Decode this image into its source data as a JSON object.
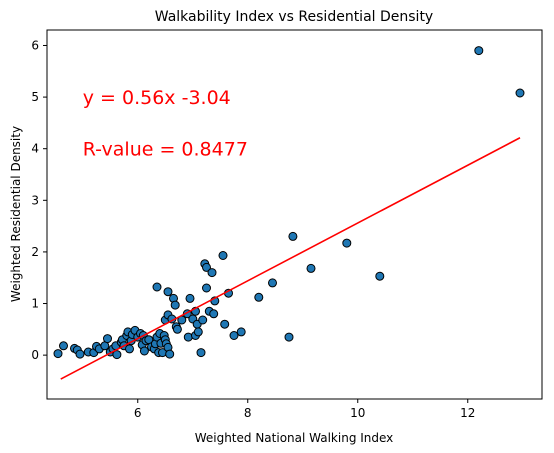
{
  "chart_data": {
    "type": "scatter",
    "title": "Walkability Index vs Residential Density",
    "xlabel": "Weighted National Walking Index",
    "ylabel": "Weighted Residential Density",
    "xlim": [
      4.35,
      13.35
    ],
    "ylim": [
      -0.85,
      6.3
    ],
    "x_ticks": [
      6,
      8,
      10,
      12
    ],
    "y_ticks": [
      0,
      1,
      2,
      3,
      4,
      5,
      6
    ],
    "grid": false,
    "colors": {
      "points": "#1f77b4",
      "edge": "#000000",
      "line": "#ff0000",
      "annotation": "#ff0000"
    },
    "annotations": [
      {
        "text": "y = 0.56x -3.04",
        "x": 5.0,
        "y": 5.0
      },
      {
        "text": "R-value = 0.8477",
        "x": 5.0,
        "y": 4.0
      }
    ],
    "regression": {
      "slope": 0.56,
      "intercept": -3.04,
      "x_range": [
        4.6,
        12.95
      ]
    },
    "points": [
      [
        4.55,
        0.03
      ],
      [
        4.65,
        0.18
      ],
      [
        4.85,
        0.13
      ],
      [
        4.9,
        0.1
      ],
      [
        4.95,
        0.02
      ],
      [
        5.1,
        0.06
      ],
      [
        5.2,
        0.05
      ],
      [
        5.25,
        0.17
      ],
      [
        5.3,
        0.12
      ],
      [
        5.4,
        0.18
      ],
      [
        5.45,
        0.32
      ],
      [
        5.5,
        0.06
      ],
      [
        5.55,
        0.12
      ],
      [
        5.6,
        0.18
      ],
      [
        5.62,
        0.01
      ],
      [
        5.7,
        0.25
      ],
      [
        5.72,
        0.3
      ],
      [
        5.75,
        0.18
      ],
      [
        5.8,
        0.38
      ],
      [
        5.82,
        0.45
      ],
      [
        5.85,
        0.12
      ],
      [
        5.88,
        0.28
      ],
      [
        5.9,
        0.4
      ],
      [
        5.95,
        0.48
      ],
      [
        6.0,
        0.35
      ],
      [
        6.05,
        0.42
      ],
      [
        6.08,
        0.2
      ],
      [
        6.1,
        0.38
      ],
      [
        6.12,
        0.08
      ],
      [
        6.15,
        0.28
      ],
      [
        6.2,
        0.3
      ],
      [
        6.25,
        0.16
      ],
      [
        6.3,
        0.12
      ],
      [
        6.32,
        0.22
      ],
      [
        6.35,
        0.35
      ],
      [
        6.38,
        0.05
      ],
      [
        6.4,
        0.42
      ],
      [
        6.42,
        0.23
      ],
      [
        6.45,
        0.05
      ],
      [
        6.48,
        0.38
      ],
      [
        6.5,
        0.3
      ],
      [
        6.52,
        0.22
      ],
      [
        6.55,
        0.15
      ],
      [
        6.58,
        0.02
      ],
      [
        6.35,
        1.32
      ],
      [
        6.55,
        1.23
      ],
      [
        6.5,
        0.68
      ],
      [
        6.55,
        0.78
      ],
      [
        6.62,
        0.7
      ],
      [
        6.65,
        1.1
      ],
      [
        6.68,
        0.97
      ],
      [
        6.7,
        0.55
      ],
      [
        6.72,
        0.5
      ],
      [
        6.8,
        0.68
      ],
      [
        6.9,
        0.8
      ],
      [
        6.92,
        0.35
      ],
      [
        6.95,
        1.1
      ],
      [
        7.0,
        0.7
      ],
      [
        7.05,
        0.85
      ],
      [
        7.05,
        0.38
      ],
      [
        7.08,
        0.6
      ],
      [
        7.1,
        0.45
      ],
      [
        7.15,
        0.05
      ],
      [
        7.18,
        0.68
      ],
      [
        7.22,
        1.77
      ],
      [
        7.25,
        1.7
      ],
      [
        7.25,
        1.3
      ],
      [
        7.3,
        0.85
      ],
      [
        7.35,
        1.6
      ],
      [
        7.38,
        0.8
      ],
      [
        7.4,
        1.05
      ],
      [
        7.55,
        1.93
      ],
      [
        7.58,
        0.6
      ],
      [
        7.65,
        1.2
      ],
      [
        7.75,
        0.38
      ],
      [
        7.88,
        0.45
      ],
      [
        8.2,
        1.12
      ],
      [
        8.45,
        1.4
      ],
      [
        8.75,
        0.35
      ],
      [
        8.82,
        2.3
      ],
      [
        9.15,
        1.68
      ],
      [
        9.8,
        2.17
      ],
      [
        10.4,
        1.53
      ],
      [
        12.2,
        5.9
      ],
      [
        12.95,
        5.08
      ]
    ]
  }
}
